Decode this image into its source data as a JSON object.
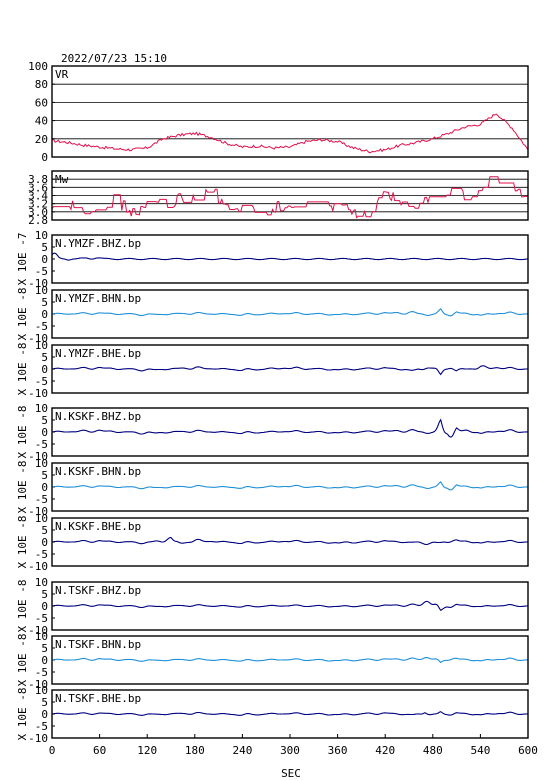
{
  "title": "2022/07/23  15:10",
  "xaxis": {
    "label": "SEC",
    "ticks": [
      0,
      60,
      120,
      180,
      240,
      300,
      360,
      420,
      480,
      540,
      600
    ],
    "range": [
      0,
      600
    ]
  },
  "colors": {
    "vr": "#e0104a",
    "mw": "#e0104a",
    "dark": "#000080",
    "light": "#2090d8"
  },
  "chart_data": [
    {
      "type": "line",
      "panel": "vr",
      "label": "VR",
      "ylim": [
        0,
        100
      ],
      "yticks": [
        0,
        20,
        40,
        60,
        80,
        100
      ],
      "grid": true,
      "color": "#e0104a",
      "x": [
        0,
        20,
        40,
        60,
        80,
        100,
        120,
        140,
        160,
        180,
        200,
        220,
        240,
        260,
        280,
        300,
        320,
        340,
        360,
        380,
        400,
        420,
        440,
        460,
        480,
        500,
        520,
        540,
        560,
        580,
        600
      ],
      "values": [
        18,
        16,
        13,
        11,
        9,
        8,
        10,
        20,
        24,
        26,
        22,
        15,
        11,
        12,
        10,
        11,
        17,
        19,
        17,
        10,
        6,
        8,
        13,
        16,
        20,
        26,
        33,
        36,
        48,
        32,
        8
      ]
    },
    {
      "type": "line",
      "panel": "mw",
      "label": "Mw",
      "ylim": [
        2.8,
        4.0
      ],
      "yticks": [
        2.8,
        3.0,
        3.2,
        3.4,
        3.6,
        3.8
      ],
      "grid": true,
      "color": "#e0104a",
      "x": [
        0,
        20,
        40,
        60,
        80,
        100,
        120,
        140,
        160,
        180,
        200,
        220,
        240,
        260,
        280,
        300,
        320,
        340,
        360,
        380,
        400,
        420,
        440,
        460,
        480,
        500,
        520,
        540,
        560,
        580,
        600
      ],
      "values": [
        3.1,
        3.2,
        3.0,
        3.1,
        3.3,
        3.0,
        3.1,
        3.2,
        3.3,
        3.4,
        3.5,
        3.2,
        3.1,
        3.0,
        3.1,
        3.2,
        3.2,
        3.1,
        3.2,
        3.0,
        2.9,
        3.4,
        3.3,
        3.2,
        3.3,
        3.5,
        3.4,
        3.6,
        3.8,
        3.6,
        3.2
      ]
    },
    {
      "type": "line",
      "panel": "trace",
      "label": "N.YMZF.BHZ.bp",
      "exponent": "X 10E -7",
      "ylim": [
        -10,
        10
      ],
      "yticks": [
        -10,
        -5,
        0,
        5,
        10
      ],
      "grid": false,
      "color": "#000080",
      "x": [
        0,
        5,
        10,
        20,
        30,
        40,
        50,
        60,
        70,
        80,
        600
      ],
      "values": [
        3,
        2,
        0.5,
        -0.3,
        0.4,
        0.2,
        0.8,
        0.5,
        0.1,
        0,
        0
      ]
    },
    {
      "type": "line",
      "panel": "trace",
      "label": "N.YMZF.BHN.bp",
      "exponent": "X 10E -8",
      "ylim": [
        -10,
        10
      ],
      "yticks": [
        -10,
        -5,
        0,
        5,
        10
      ],
      "grid": false,
      "color": "#2090d8",
      "x": [
        0,
        60,
        120,
        180,
        240,
        300,
        360,
        420,
        460,
        480,
        490,
        500,
        510,
        540,
        570,
        600
      ],
      "values": [
        0,
        0.5,
        -0.5,
        0.5,
        -0.5,
        0.5,
        -0.4,
        0.6,
        0.8,
        -1,
        2,
        -1.5,
        1,
        -0.7,
        0.8,
        0
      ]
    },
    {
      "type": "line",
      "panel": "trace",
      "label": "N.YMZF.BHE.bp",
      "exponent": "X 10E -8",
      "ylim": [
        -10,
        10
      ],
      "yticks": [
        -10,
        -5,
        0,
        5,
        10
      ],
      "grid": false,
      "color": "#000080",
      "x": [
        0,
        60,
        120,
        180,
        240,
        300,
        360,
        420,
        460,
        480,
        490,
        500,
        510,
        540,
        570,
        600
      ],
      "values": [
        0,
        0.7,
        -0.7,
        0.8,
        -0.6,
        0.7,
        -0.5,
        0.6,
        -1,
        1.5,
        -2.5,
        1.5,
        -1,
        1.2,
        0.6,
        0
      ]
    },
    {
      "type": "line",
      "panel": "trace",
      "label": "N.KSKF.BHZ.bp",
      "exponent": "X 10E -8",
      "ylim": [
        -10,
        10
      ],
      "yticks": [
        -10,
        -5,
        0,
        5,
        10
      ],
      "grid": false,
      "color": "#000080",
      "x": [
        0,
        60,
        120,
        180,
        240,
        300,
        360,
        420,
        460,
        480,
        490,
        500,
        510,
        540,
        570,
        600
      ],
      "values": [
        0,
        0.8,
        -0.8,
        0.6,
        -0.6,
        0.5,
        -0.5,
        0.6,
        0.8,
        -1,
        5,
        -5,
        2,
        -0.8,
        1,
        0
      ]
    },
    {
      "type": "line",
      "panel": "trace",
      "label": "N.KSKF.BHN.bp",
      "exponent": "X 10E -8",
      "ylim": [
        -10,
        10
      ],
      "yticks": [
        -10,
        -5,
        0,
        5,
        10
      ],
      "grid": false,
      "color": "#2090d8",
      "x": [
        0,
        60,
        120,
        180,
        240,
        300,
        360,
        420,
        460,
        480,
        490,
        500,
        510,
        540,
        570,
        600
      ],
      "values": [
        0,
        0.5,
        -0.6,
        0.5,
        -0.5,
        0.6,
        -0.5,
        0.6,
        0.7,
        -1,
        2,
        -2.5,
        1,
        -0.6,
        0.8,
        0
      ]
    },
    {
      "type": "line",
      "panel": "trace",
      "label": "N.KSKF.BHE.bp",
      "exponent": "X 10E -8",
      "ylim": [
        -10,
        10
      ],
      "yticks": [
        -10,
        -5,
        0,
        5,
        10
      ],
      "grid": false,
      "color": "#000080",
      "x": [
        0,
        60,
        120,
        140,
        150,
        160,
        180,
        240,
        300,
        360,
        420,
        480,
        510,
        540,
        570,
        600
      ],
      "values": [
        0,
        0.6,
        -0.6,
        1,
        2,
        -1,
        1,
        -0.6,
        0.6,
        -0.6,
        0.6,
        -1,
        1,
        -0.6,
        0.6,
        0
      ]
    },
    {
      "type": "line",
      "panel": "trace",
      "label": "N.TSKF.BHZ.bp",
      "exponent": "X 10E -8",
      "ylim": [
        -10,
        10
      ],
      "yticks": [
        -10,
        -5,
        0,
        5,
        10
      ],
      "grid": false,
      "color": "#000080",
      "x": [
        0,
        60,
        120,
        180,
        240,
        300,
        360,
        420,
        460,
        470,
        480,
        490,
        500,
        510,
        540,
        570,
        600
      ],
      "values": [
        0,
        0.5,
        -0.5,
        0.4,
        -0.4,
        0.3,
        -0.3,
        0.4,
        0.6,
        2,
        3,
        -2,
        -1,
        0.8,
        -0.4,
        0.5,
        0
      ]
    },
    {
      "type": "line",
      "panel": "trace",
      "label": "N.TSKF.BHN.bp",
      "exponent": "X 10E -8",
      "ylim": [
        -10,
        10
      ],
      "yticks": [
        -10,
        -5,
        0,
        5,
        10
      ],
      "grid": false,
      "color": "#2090d8",
      "x": [
        0,
        60,
        120,
        180,
        240,
        300,
        360,
        420,
        460,
        470,
        480,
        490,
        500,
        510,
        540,
        570,
        600
      ],
      "values": [
        0,
        0.6,
        -0.4,
        0.4,
        -0.4,
        0.4,
        -0.4,
        0.5,
        0.6,
        1.2,
        1.6,
        -1.2,
        0.6,
        0.8,
        -0.5,
        0.8,
        0
      ]
    },
    {
      "type": "line",
      "panel": "trace",
      "label": "N.TSKF.BHE.bp",
      "exponent": "X 10E -8",
      "ylim": [
        -10,
        10
      ],
      "yticks": [
        -10,
        -5,
        0,
        5,
        10
      ],
      "grid": false,
      "color": "#000080",
      "x": [
        0,
        60,
        120,
        180,
        240,
        300,
        360,
        420,
        460,
        470,
        480,
        490,
        500,
        510,
        540,
        570,
        600
      ],
      "values": [
        0,
        0.4,
        -0.4,
        0.5,
        -0.5,
        0.4,
        -0.4,
        0.5,
        -0.6,
        0.8,
        -1,
        0.8,
        -0.7,
        0.6,
        -0.5,
        0.7,
        0
      ]
    }
  ]
}
